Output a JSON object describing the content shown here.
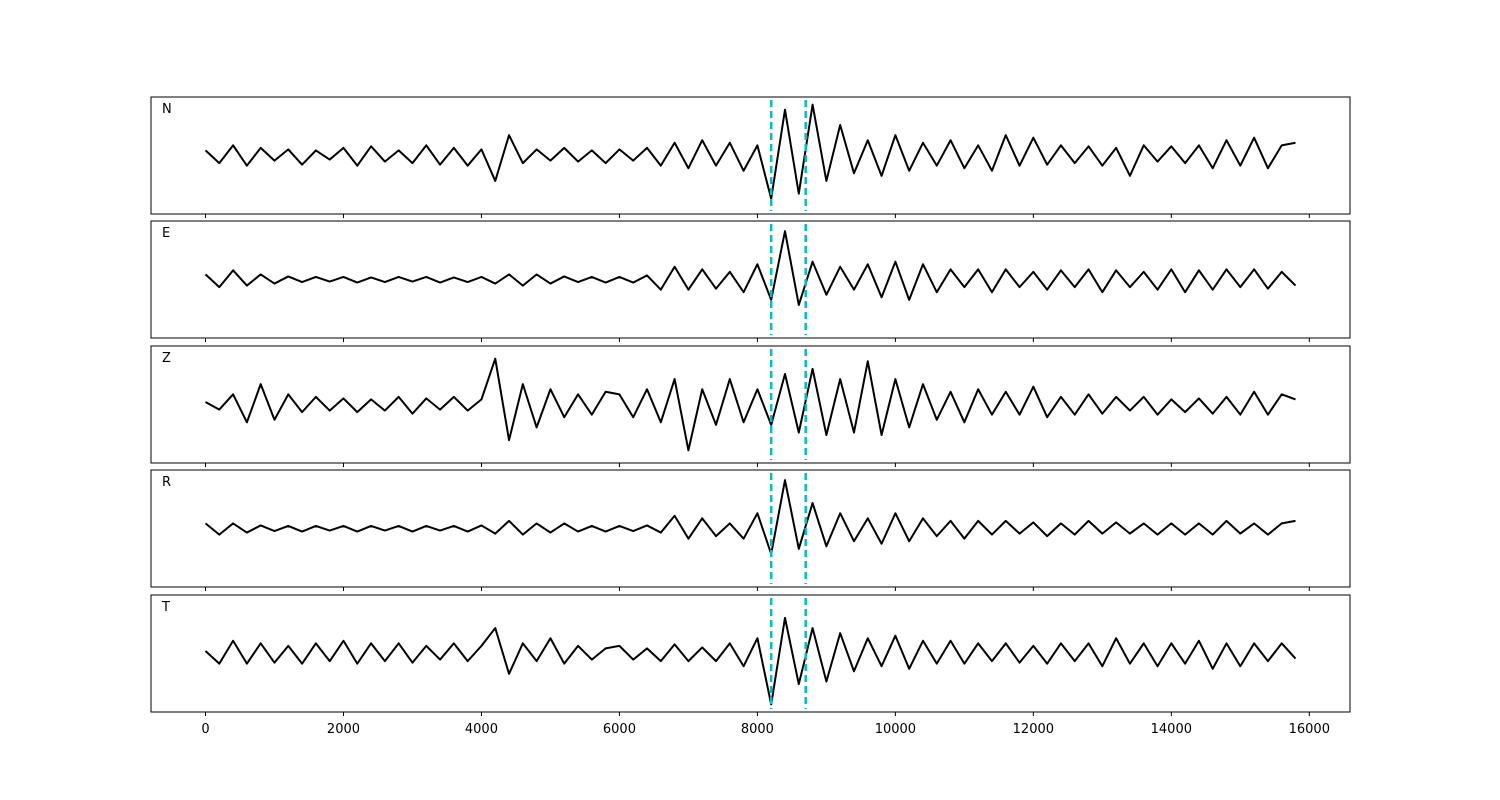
{
  "chart_data": [
    {
      "type": "line",
      "label": "N",
      "color": "#000000",
      "vline_color": "#00bfbf",
      "vlines": [
        8200,
        8700
      ],
      "xlim": [
        -790,
        16590
      ],
      "ylim": [
        -1.15,
        1.15
      ],
      "xticks": [
        0,
        2000,
        4000,
        6000,
        8000,
        10000,
        12000,
        14000,
        16000
      ],
      "xtick_labels": false,
      "x": [
        0,
        200,
        400,
        600,
        800,
        1000,
        1200,
        1400,
        1600,
        1800,
        2000,
        2200,
        2400,
        2600,
        2800,
        3000,
        3200,
        3400,
        3600,
        3800,
        4000,
        4200,
        4400,
        4600,
        4800,
        5000,
        5200,
        5400,
        5600,
        5800,
        6000,
        6200,
        6400,
        6600,
        6800,
        7000,
        7200,
        7400,
        7600,
        7800,
        8000,
        8200,
        8400,
        8600,
        8800,
        9000,
        9200,
        9400,
        9600,
        9800,
        10000,
        10200,
        10400,
        10600,
        10800,
        11000,
        11200,
        11400,
        11600,
        11800,
        12000,
        12200,
        12400,
        12600,
        12800,
        13000,
        13200,
        13400,
        13600,
        13800,
        14000,
        14200,
        14400,
        14600,
        14800,
        15000,
        15200,
        15400,
        15600,
        15800
      ],
      "values": [
        0.1,
        -0.15,
        0.2,
        -0.2,
        0.15,
        -0.1,
        0.12,
        -0.18,
        0.1,
        -0.08,
        0.15,
        -0.2,
        0.18,
        -0.12,
        0.1,
        -0.15,
        0.2,
        -0.18,
        0.15,
        -0.2,
        0.12,
        -0.5,
        0.4,
        -0.15,
        0.12,
        -0.1,
        0.15,
        -0.12,
        0.1,
        -0.15,
        0.12,
        -0.1,
        0.15,
        -0.2,
        0.25,
        -0.25,
        0.3,
        -0.2,
        0.25,
        -0.3,
        0.2,
        -0.85,
        0.9,
        -0.75,
        1.0,
        -0.5,
        0.6,
        -0.35,
        0.3,
        -0.4,
        0.4,
        -0.3,
        0.25,
        -0.2,
        0.3,
        -0.25,
        0.2,
        -0.3,
        0.4,
        -0.2,
        0.35,
        -0.18,
        0.2,
        -0.15,
        0.18,
        -0.2,
        0.15,
        -0.4,
        0.2,
        -0.12,
        0.18,
        -0.15,
        0.2,
        -0.25,
        0.3,
        -0.2,
        0.35,
        -0.25,
        0.2,
        0.25
      ]
    },
    {
      "type": "line",
      "label": "E",
      "color": "#000000",
      "vline_color": "#00bfbf",
      "vlines": [
        8200,
        8700
      ],
      "xlim": [
        -790,
        16590
      ],
      "ylim": [
        -1.15,
        1.15
      ],
      "xticks": [
        0,
        2000,
        4000,
        6000,
        8000,
        10000,
        12000,
        14000,
        16000
      ],
      "xtick_labels": false,
      "x": [
        0,
        200,
        400,
        600,
        800,
        1000,
        1200,
        1400,
        1600,
        1800,
        2000,
        2200,
        2400,
        2600,
        2800,
        3000,
        3200,
        3400,
        3600,
        3800,
        4000,
        4200,
        4400,
        4600,
        4800,
        5000,
        5200,
        5400,
        5600,
        5800,
        6000,
        6200,
        6400,
        6600,
        6800,
        7000,
        7200,
        7400,
        7600,
        7800,
        8000,
        8200,
        8400,
        8600,
        8800,
        9000,
        9200,
        9400,
        9600,
        9800,
        10000,
        10200,
        10400,
        10600,
        10800,
        11000,
        11200,
        11400,
        11600,
        11800,
        12000,
        12200,
        12400,
        12600,
        12800,
        13000,
        13200,
        13400,
        13600,
        13800,
        14000,
        14200,
        14400,
        14600,
        14800,
        15000,
        15200,
        15400,
        15600,
        15800
      ],
      "values": [
        0.1,
        -0.15,
        0.18,
        -0.12,
        0.1,
        -0.08,
        0.06,
        -0.05,
        0.05,
        -0.04,
        0.05,
        -0.06,
        0.04,
        -0.05,
        0.05,
        -0.04,
        0.05,
        -0.06,
        0.04,
        -0.05,
        0.05,
        -0.08,
        0.1,
        -0.12,
        0.1,
        -0.08,
        0.06,
        -0.05,
        0.05,
        -0.06,
        0.05,
        -0.06,
        0.08,
        -0.2,
        0.25,
        -0.2,
        0.2,
        -0.18,
        0.15,
        -0.25,
        0.3,
        -0.4,
        0.95,
        -0.5,
        0.35,
        -0.3,
        0.25,
        -0.2,
        0.3,
        -0.35,
        0.35,
        -0.4,
        0.3,
        -0.25,
        0.2,
        -0.15,
        0.2,
        -0.25,
        0.2,
        -0.15,
        0.15,
        -0.2,
        0.18,
        -0.15,
        0.2,
        -0.25,
        0.18,
        -0.15,
        0.15,
        -0.2,
        0.2,
        -0.25,
        0.18,
        -0.2,
        0.2,
        -0.15,
        0.2,
        -0.18,
        0.15,
        -0.12
      ]
    },
    {
      "type": "line",
      "label": "Z",
      "color": "#000000",
      "vline_color": "#00bfbf",
      "vlines": [
        8200,
        8700
      ],
      "xlim": [
        -790,
        16590
      ],
      "ylim": [
        -1.15,
        1.15
      ],
      "xticks": [
        0,
        2000,
        4000,
        6000,
        8000,
        10000,
        12000,
        14000,
        16000
      ],
      "xtick_labels": false,
      "x": [
        0,
        200,
        400,
        600,
        800,
        1000,
        1200,
        1400,
        1600,
        1800,
        2000,
        2200,
        2400,
        2600,
        2800,
        3000,
        3200,
        3400,
        3600,
        3800,
        4000,
        4200,
        4400,
        4600,
        4800,
        5000,
        5200,
        5400,
        5600,
        5800,
        6000,
        6200,
        6400,
        6600,
        6800,
        7000,
        7200,
        7400,
        7600,
        7800,
        8000,
        8200,
        8400,
        8600,
        8800,
        9000,
        9200,
        9400,
        9600,
        9800,
        10000,
        10200,
        10400,
        10600,
        10800,
        11000,
        11200,
        11400,
        11600,
        11800,
        12000,
        12200,
        12400,
        12600,
        12800,
        13000,
        13200,
        13400,
        13600,
        13800,
        14000,
        14200,
        14400,
        14600,
        14800,
        15000,
        15200,
        15400,
        15600,
        15800
      ],
      "values": [
        0.05,
        -0.1,
        0.2,
        -0.35,
        0.4,
        -0.3,
        0.2,
        -0.15,
        0.15,
        -0.12,
        0.12,
        -0.15,
        0.1,
        -0.12,
        0.15,
        -0.18,
        0.12,
        -0.1,
        0.15,
        -0.12,
        0.1,
        0.9,
        -0.7,
        0.4,
        -0.45,
        0.3,
        -0.25,
        0.2,
        -0.2,
        0.25,
        0.2,
        -0.25,
        0.3,
        -0.35,
        0.5,
        -0.9,
        0.3,
        -0.4,
        0.5,
        -0.35,
        0.3,
        -0.4,
        0.6,
        -0.55,
        0.7,
        -0.6,
        0.5,
        -0.55,
        0.85,
        -0.6,
        0.5,
        -0.45,
        0.4,
        -0.3,
        0.25,
        -0.35,
        0.3,
        -0.2,
        0.25,
        -0.2,
        0.35,
        -0.25,
        0.15,
        -0.2,
        0.2,
        -0.18,
        0.15,
        -0.12,
        0.15,
        -0.2,
        0.1,
        -0.15,
        0.12,
        -0.18,
        0.15,
        -0.2,
        0.25,
        -0.2,
        0.2,
        0.1
      ]
    },
    {
      "type": "line",
      "label": "R",
      "color": "#000000",
      "vline_color": "#00bfbf",
      "vlines": [
        8200,
        8700
      ],
      "xlim": [
        -790,
        16590
      ],
      "ylim": [
        -1.15,
        1.15
      ],
      "xticks": [
        0,
        2000,
        4000,
        6000,
        8000,
        10000,
        12000,
        14000,
        16000
      ],
      "xtick_labels": false,
      "x": [
        0,
        200,
        400,
        600,
        800,
        1000,
        1200,
        1400,
        1600,
        1800,
        2000,
        2200,
        2400,
        2600,
        2800,
        3000,
        3200,
        3400,
        3600,
        3800,
        4000,
        4200,
        4400,
        4600,
        4800,
        5000,
        5200,
        5400,
        5600,
        5800,
        6000,
        6200,
        6400,
        6600,
        6800,
        7000,
        7200,
        7400,
        7600,
        7800,
        8000,
        8200,
        8400,
        8600,
        8800,
        9000,
        9200,
        9400,
        9600,
        9800,
        10000,
        10200,
        10400,
        10600,
        10800,
        11000,
        11200,
        11400,
        11600,
        11800,
        12000,
        12200,
        12400,
        12600,
        12800,
        13000,
        13200,
        13400,
        13600,
        13800,
        14000,
        14200,
        14400,
        14600,
        14800,
        15000,
        15200,
        15400,
        15600,
        15800
      ],
      "values": [
        0.1,
        -0.12,
        0.1,
        -0.08,
        0.06,
        -0.05,
        0.05,
        -0.06,
        0.05,
        -0.04,
        0.05,
        -0.06,
        0.05,
        -0.04,
        0.05,
        -0.06,
        0.05,
        -0.04,
        0.05,
        -0.06,
        0.06,
        -0.1,
        0.15,
        -0.12,
        0.1,
        -0.08,
        0.1,
        -0.06,
        0.05,
        -0.06,
        0.05,
        -0.05,
        0.06,
        -0.08,
        0.25,
        -0.2,
        0.2,
        -0.15,
        0.1,
        -0.2,
        0.3,
        -0.5,
        0.95,
        -0.4,
        0.5,
        -0.35,
        0.3,
        -0.25,
        0.2,
        -0.3,
        0.3,
        -0.25,
        0.2,
        -0.15,
        0.15,
        -0.2,
        0.15,
        -0.12,
        0.15,
        -0.1,
        0.12,
        -0.15,
        0.1,
        -0.12,
        0.15,
        -0.1,
        0.12,
        -0.1,
        0.1,
        -0.12,
        0.1,
        -0.12,
        0.1,
        -0.12,
        0.15,
        -0.1,
        0.1,
        -0.12,
        0.1,
        0.15
      ]
    },
    {
      "type": "line",
      "label": "T",
      "color": "#000000",
      "vline_color": "#00bfbf",
      "vlines": [
        8200,
        8700
      ],
      "xlim": [
        -790,
        16590
      ],
      "ylim": [
        -1.15,
        1.15
      ],
      "xticks": [
        0,
        2000,
        4000,
        6000,
        8000,
        10000,
        12000,
        14000,
        16000
      ],
      "xtick_labels": true,
      "x": [
        0,
        200,
        400,
        600,
        800,
        1000,
        1200,
        1400,
        1600,
        1800,
        2000,
        2200,
        2400,
        2600,
        2800,
        3000,
        3200,
        3400,
        3600,
        3800,
        4000,
        4200,
        4400,
        4600,
        4800,
        5000,
        5200,
        5400,
        5600,
        5800,
        6000,
        6200,
        6400,
        6600,
        6800,
        7000,
        7200,
        7400,
        7600,
        7800,
        8000,
        8200,
        8400,
        8600,
        8800,
        9000,
        9200,
        9400,
        9600,
        9800,
        10000,
        10200,
        10400,
        10600,
        10800,
        11000,
        11200,
        11400,
        11600,
        11800,
        12000,
        12200,
        12400,
        12600,
        12800,
        13000,
        13200,
        13400,
        13600,
        13800,
        14000,
        14200,
        14400,
        14600,
        14800,
        15000,
        15200,
        15400,
        15600,
        15800
      ],
      "values": [
        0.05,
        -0.2,
        0.25,
        -0.2,
        0.2,
        -0.18,
        0.15,
        -0.2,
        0.2,
        -0.15,
        0.25,
        -0.2,
        0.2,
        -0.15,
        0.2,
        -0.18,
        0.15,
        -0.12,
        0.2,
        -0.15,
        0.15,
        0.5,
        -0.4,
        0.2,
        -0.15,
        0.3,
        -0.2,
        0.15,
        -0.12,
        0.1,
        0.15,
        -0.12,
        0.1,
        -0.15,
        0.18,
        -0.15,
        0.12,
        -0.15,
        0.2,
        -0.25,
        0.3,
        -1.0,
        0.7,
        -0.6,
        0.5,
        -0.55,
        0.4,
        -0.35,
        0.3,
        -0.25,
        0.35,
        -0.3,
        0.25,
        -0.2,
        0.25,
        -0.2,
        0.2,
        -0.15,
        0.2,
        -0.18,
        0.15,
        -0.2,
        0.2,
        -0.15,
        0.2,
        -0.25,
        0.3,
        -0.2,
        0.2,
        -0.25,
        0.2,
        -0.2,
        0.25,
        -0.3,
        0.2,
        -0.25,
        0.2,
        -0.15,
        0.2,
        -0.1
      ]
    }
  ]
}
